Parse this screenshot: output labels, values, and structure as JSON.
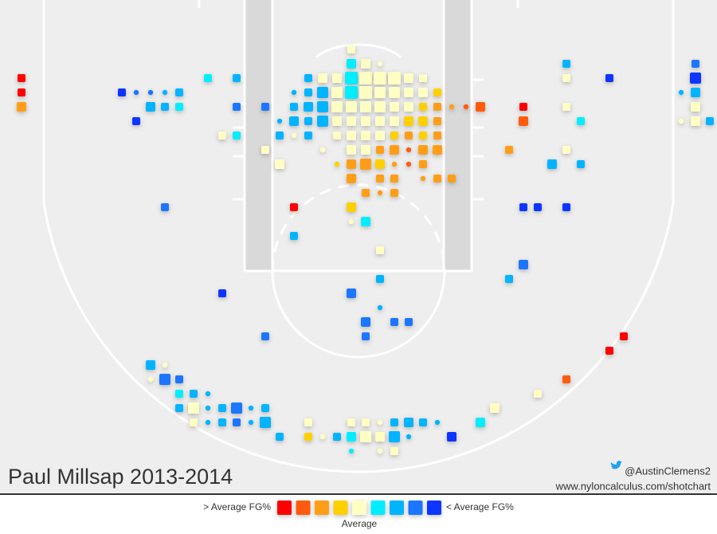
{
  "chart_data": {
    "type": "shotchart",
    "title": "Paul Millsap 2013-2014",
    "credit": "@AustinClemens2",
    "url": "www.nyloncalculus.com/shotchart",
    "legend": {
      "left": "> Average FG%",
      "right": "< Average FG%",
      "middle": "Average",
      "colors": [
        "#ff0000",
        "#ff5a0a",
        "#ff9e14",
        "#ffd000",
        "#ffffc4",
        "#00eeff",
        "#00b4ff",
        "#1a76ff",
        "#0a36ff"
      ]
    },
    "xlim": [
      -25,
      25
    ],
    "ylim": [
      0,
      34
    ],
    "points": [
      {
        "x": -0.5,
        "y": 3,
        "s": 2,
        "c": 4
      },
      {
        "x": -0.5,
        "y": 4,
        "s": 3,
        "c": 5
      },
      {
        "x": 0.5,
        "y": 4,
        "s": 3,
        "c": 4
      },
      {
        "x": 1.5,
        "y": 4,
        "s": 1,
        "c": 4
      },
      {
        "x": 14.5,
        "y": 4,
        "s": 2,
        "c": 6
      },
      {
        "x": 23.5,
        "y": 4,
        "s": 2,
        "c": 7
      },
      {
        "x": -23.5,
        "y": 5,
        "s": 2,
        "c": 0
      },
      {
        "x": -10.5,
        "y": 5,
        "s": 2,
        "c": 5
      },
      {
        "x": -8.5,
        "y": 5,
        "s": 2,
        "c": 6
      },
      {
        "x": -3.5,
        "y": 5,
        "s": 2,
        "c": 6
      },
      {
        "x": -2.5,
        "y": 5,
        "s": 3,
        "c": 4
      },
      {
        "x": -1.5,
        "y": 5,
        "s": 3,
        "c": 4
      },
      {
        "x": -0.5,
        "y": 5,
        "s": 5,
        "c": 5
      },
      {
        "x": 0.5,
        "y": 5,
        "s": 5,
        "c": 4
      },
      {
        "x": 1.5,
        "y": 5,
        "s": 5,
        "c": 4
      },
      {
        "x": 2.5,
        "y": 5,
        "s": 5,
        "c": 4
      },
      {
        "x": 3.5,
        "y": 5,
        "s": 3,
        "c": 4
      },
      {
        "x": 4.5,
        "y": 5,
        "s": 2,
        "c": 4
      },
      {
        "x": 14.5,
        "y": 5,
        "s": 2,
        "c": 4
      },
      {
        "x": 17.5,
        "y": 5,
        "s": 2,
        "c": 8
      },
      {
        "x": 23.5,
        "y": 5,
        "s": 4,
        "c": 8
      },
      {
        "x": -23.5,
        "y": 6,
        "s": 2,
        "c": 0
      },
      {
        "x": -16.5,
        "y": 6,
        "s": 2,
        "c": 8
      },
      {
        "x": -15.5,
        "y": 6,
        "s": 1,
        "c": 7
      },
      {
        "x": -14.5,
        "y": 6,
        "s": 1,
        "c": 7
      },
      {
        "x": -13.5,
        "y": 6,
        "s": 1,
        "c": 6
      },
      {
        "x": -12.5,
        "y": 6,
        "s": 2,
        "c": 6
      },
      {
        "x": -4.5,
        "y": 6,
        "s": 1,
        "c": 6
      },
      {
        "x": -3.5,
        "y": 6,
        "s": 2,
        "c": 6
      },
      {
        "x": -2.5,
        "y": 6,
        "s": 4,
        "c": 6
      },
      {
        "x": -1.5,
        "y": 6,
        "s": 4,
        "c": 4
      },
      {
        "x": -0.5,
        "y": 6,
        "s": 5,
        "c": 5
      },
      {
        "x": 0.5,
        "y": 6,
        "s": 5,
        "c": 4
      },
      {
        "x": 1.5,
        "y": 6,
        "s": 4,
        "c": 4
      },
      {
        "x": 2.5,
        "y": 6,
        "s": 4,
        "c": 4
      },
      {
        "x": 3.5,
        "y": 6,
        "s": 3,
        "c": 4
      },
      {
        "x": 4.5,
        "y": 6,
        "s": 3,
        "c": 4
      },
      {
        "x": 5.5,
        "y": 6,
        "s": 2,
        "c": 3
      },
      {
        "x": 22.5,
        "y": 6,
        "s": 1,
        "c": 6
      },
      {
        "x": 23.5,
        "y": 6,
        "s": 3,
        "c": 6
      },
      {
        "x": -23.5,
        "y": 7,
        "s": 3,
        "c": 2
      },
      {
        "x": -14.5,
        "y": 7,
        "s": 3,
        "c": 6
      },
      {
        "x": -13.5,
        "y": 7,
        "s": 2,
        "c": 6
      },
      {
        "x": -12.5,
        "y": 7,
        "s": 2,
        "c": 5
      },
      {
        "x": -8.5,
        "y": 7,
        "s": 2,
        "c": 7
      },
      {
        "x": -6.5,
        "y": 7,
        "s": 2,
        "c": 7
      },
      {
        "x": -4.5,
        "y": 7,
        "s": 2,
        "c": 6
      },
      {
        "x": -3.5,
        "y": 7,
        "s": 3,
        "c": 6
      },
      {
        "x": -2.5,
        "y": 7,
        "s": 4,
        "c": 6
      },
      {
        "x": -1.5,
        "y": 7,
        "s": 4,
        "c": 4
      },
      {
        "x": -0.5,
        "y": 7,
        "s": 4,
        "c": 4
      },
      {
        "x": 0.5,
        "y": 7,
        "s": 4,
        "c": 4
      },
      {
        "x": 1.5,
        "y": 7,
        "s": 4,
        "c": 4
      },
      {
        "x": 2.5,
        "y": 7,
        "s": 3,
        "c": 4
      },
      {
        "x": 3.5,
        "y": 7,
        "s": 3,
        "c": 4
      },
      {
        "x": 4.5,
        "y": 7,
        "s": 2,
        "c": 3
      },
      {
        "x": 5.5,
        "y": 7,
        "s": 2,
        "c": 2
      },
      {
        "x": 6.5,
        "y": 7,
        "s": 1,
        "c": 2
      },
      {
        "x": 7.5,
        "y": 7,
        "s": 1,
        "c": 1
      },
      {
        "x": 8.5,
        "y": 7,
        "s": 3,
        "c": 1
      },
      {
        "x": 11.5,
        "y": 7,
        "s": 2,
        "c": 0
      },
      {
        "x": 14.5,
        "y": 7,
        "s": 2,
        "c": 4
      },
      {
        "x": 23.5,
        "y": 7,
        "s": 3,
        "c": 4
      },
      {
        "x": -15.5,
        "y": 8,
        "s": 2,
        "c": 8
      },
      {
        "x": -5.5,
        "y": 8,
        "s": 1,
        "c": 6
      },
      {
        "x": -4.5,
        "y": 8,
        "s": 3,
        "c": 6
      },
      {
        "x": -3.5,
        "y": 8,
        "s": 2,
        "c": 6
      },
      {
        "x": -2.5,
        "y": 8,
        "s": 4,
        "c": 6
      },
      {
        "x": -1.5,
        "y": 8,
        "s": 3,
        "c": 4
      },
      {
        "x": -0.5,
        "y": 8,
        "s": 3,
        "c": 4
      },
      {
        "x": 0.5,
        "y": 8,
        "s": 3,
        "c": 4
      },
      {
        "x": 1.5,
        "y": 8,
        "s": 3,
        "c": 4
      },
      {
        "x": 2.5,
        "y": 8,
        "s": 3,
        "c": 4
      },
      {
        "x": 3.5,
        "y": 8,
        "s": 3,
        "c": 3
      },
      {
        "x": 4.5,
        "y": 8,
        "s": 3,
        "c": 3
      },
      {
        "x": 5.5,
        "y": 8,
        "s": 2,
        "c": 2
      },
      {
        "x": 11.5,
        "y": 8,
        "s": 3,
        "c": 1
      },
      {
        "x": 15.5,
        "y": 8,
        "s": 2,
        "c": 5
      },
      {
        "x": 22.5,
        "y": 8,
        "s": 1,
        "c": 4
      },
      {
        "x": 23.5,
        "y": 8,
        "s": 3,
        "c": 4
      },
      {
        "x": 24.5,
        "y": 8,
        "s": 2,
        "c": 6
      },
      {
        "x": -9.5,
        "y": 9,
        "s": 2,
        "c": 4
      },
      {
        "x": -8.5,
        "y": 9,
        "s": 2,
        "c": 5
      },
      {
        "x": -5.5,
        "y": 9,
        "s": 2,
        "c": 6
      },
      {
        "x": -4.5,
        "y": 9,
        "s": 1,
        "c": 4
      },
      {
        "x": -3.5,
        "y": 9,
        "s": 2,
        "c": 6
      },
      {
        "x": -1.5,
        "y": 9,
        "s": 2,
        "c": 4
      },
      {
        "x": -0.5,
        "y": 9,
        "s": 3,
        "c": 4
      },
      {
        "x": 0.5,
        "y": 9,
        "s": 3,
        "c": 4
      },
      {
        "x": 1.5,
        "y": 9,
        "s": 3,
        "c": 4
      },
      {
        "x": 2.5,
        "y": 9,
        "s": 2,
        "c": 3
      },
      {
        "x": 3.5,
        "y": 9,
        "s": 2,
        "c": 2
      },
      {
        "x": 4.5,
        "y": 9,
        "s": 2,
        "c": 3
      },
      {
        "x": 5.5,
        "y": 9,
        "s": 2,
        "c": 2
      },
      {
        "x": -6.5,
        "y": 10,
        "s": 2,
        "c": 4
      },
      {
        "x": -2.5,
        "y": 10,
        "s": 1,
        "c": 4
      },
      {
        "x": -0.5,
        "y": 10,
        "s": 3,
        "c": 4
      },
      {
        "x": 0.5,
        "y": 10,
        "s": 3,
        "c": 4
      },
      {
        "x": 1.5,
        "y": 10,
        "s": 2,
        "c": 2
      },
      {
        "x": 2.5,
        "y": 10,
        "s": 3,
        "c": 2
      },
      {
        "x": 3.5,
        "y": 10,
        "s": 1,
        "c": 1
      },
      {
        "x": 4.5,
        "y": 10,
        "s": 3,
        "c": 2
      },
      {
        "x": 5.5,
        "y": 10,
        "s": 3,
        "c": 2
      },
      {
        "x": 10.5,
        "y": 10,
        "s": 2,
        "c": 2
      },
      {
        "x": 14.5,
        "y": 10,
        "s": 2,
        "c": 4
      },
      {
        "x": -5.5,
        "y": 11,
        "s": 3,
        "c": 4
      },
      {
        "x": -1.5,
        "y": 11,
        "s": 1,
        "c": 3
      },
      {
        "x": -0.5,
        "y": 11,
        "s": 3,
        "c": 2
      },
      {
        "x": 0.5,
        "y": 11,
        "s": 4,
        "c": 2
      },
      {
        "x": 1.5,
        "y": 11,
        "s": 3,
        "c": 3
      },
      {
        "x": 2.5,
        "y": 11,
        "s": 1,
        "c": 2
      },
      {
        "x": 3.5,
        "y": 11,
        "s": 1,
        "c": 1
      },
      {
        "x": 4.5,
        "y": 11,
        "s": 2,
        "c": 2
      },
      {
        "x": 13.5,
        "y": 11,
        "s": 3,
        "c": 6
      },
      {
        "x": 15.5,
        "y": 11,
        "s": 2,
        "c": 6
      },
      {
        "x": -0.5,
        "y": 12,
        "s": 3,
        "c": 2
      },
      {
        "x": 1.5,
        "y": 12,
        "s": 2,
        "c": 2
      },
      {
        "x": 2.5,
        "y": 12,
        "s": 2,
        "c": 2
      },
      {
        "x": 4.5,
        "y": 12,
        "s": 1,
        "c": 2
      },
      {
        "x": 5.5,
        "y": 12,
        "s": 2,
        "c": 2
      },
      {
        "x": 6.5,
        "y": 12,
        "s": 2,
        "c": 2
      },
      {
        "x": 0.5,
        "y": 13,
        "s": 2,
        "c": 2
      },
      {
        "x": 1.5,
        "y": 13,
        "s": 1,
        "c": 2
      },
      {
        "x": 2.5,
        "y": 13,
        "s": 2,
        "c": 2
      },
      {
        "x": -13.5,
        "y": 14,
        "s": 2,
        "c": 7
      },
      {
        "x": -4.5,
        "y": 14,
        "s": 2,
        "c": 0
      },
      {
        "x": -0.5,
        "y": 14,
        "s": 3,
        "c": 3
      },
      {
        "x": 11.5,
        "y": 14,
        "s": 2,
        "c": 8
      },
      {
        "x": 12.5,
        "y": 14,
        "s": 2,
        "c": 8
      },
      {
        "x": 14.5,
        "y": 14,
        "s": 2,
        "c": 8
      },
      {
        "x": -0.5,
        "y": 15,
        "s": 1,
        "c": 4
      },
      {
        "x": 0.5,
        "y": 15,
        "s": 3,
        "c": 5
      },
      {
        "x": -4.5,
        "y": 16,
        "s": 2,
        "c": 6
      },
      {
        "x": 1.5,
        "y": 17,
        "s": 2,
        "c": 4
      },
      {
        "x": 11.5,
        "y": 18,
        "s": 3,
        "c": 7
      },
      {
        "x": 1.5,
        "y": 19,
        "s": 2,
        "c": 6
      },
      {
        "x": 10.5,
        "y": 19,
        "s": 2,
        "c": 6
      },
      {
        "x": -9.5,
        "y": 20,
        "s": 2,
        "c": 8
      },
      {
        "x": -0.5,
        "y": 20,
        "s": 3,
        "c": 7
      },
      {
        "x": 1.5,
        "y": 21,
        "s": 1,
        "c": 6
      },
      {
        "x": 0.5,
        "y": 22,
        "s": 3,
        "c": 7
      },
      {
        "x": 2.5,
        "y": 22,
        "s": 2,
        "c": 7
      },
      {
        "x": 3.5,
        "y": 22,
        "s": 2,
        "c": 7
      },
      {
        "x": -6.5,
        "y": 23,
        "s": 2,
        "c": 7
      },
      {
        "x": 0.5,
        "y": 23,
        "s": 2,
        "c": 7
      },
      {
        "x": 18.5,
        "y": 23,
        "s": 2,
        "c": 0
      },
      {
        "x": 17.5,
        "y": 24,
        "s": 2,
        "c": 0
      },
      {
        "x": -14.5,
        "y": 25,
        "s": 3,
        "c": 6
      },
      {
        "x": -13.5,
        "y": 25,
        "s": 1,
        "c": 4
      },
      {
        "x": -14.5,
        "y": 26,
        "s": 1,
        "c": 4
      },
      {
        "x": -13.5,
        "y": 26,
        "s": 4,
        "c": 7
      },
      {
        "x": -12.5,
        "y": 26,
        "s": 2,
        "c": 7
      },
      {
        "x": 14.5,
        "y": 26,
        "s": 2,
        "c": 1
      },
      {
        "x": -12.5,
        "y": 27,
        "s": 2,
        "c": 5
      },
      {
        "x": -11.5,
        "y": 27,
        "s": 2,
        "c": 6
      },
      {
        "x": -10.5,
        "y": 27,
        "s": 1,
        "c": 6
      },
      {
        "x": 12.5,
        "y": 27,
        "s": 2,
        "c": 4
      },
      {
        "x": -12.5,
        "y": 28,
        "s": 2,
        "c": 6
      },
      {
        "x": -11.5,
        "y": 28,
        "s": 4,
        "c": 4
      },
      {
        "x": -10.5,
        "y": 28,
        "s": 1,
        "c": 6
      },
      {
        "x": -9.5,
        "y": 28,
        "s": 2,
        "c": 6
      },
      {
        "x": -8.5,
        "y": 28,
        "s": 4,
        "c": 7
      },
      {
        "x": -7.5,
        "y": 28,
        "s": 1,
        "c": 6
      },
      {
        "x": -6.5,
        "y": 28,
        "s": 2,
        "c": 6
      },
      {
        "x": 9.5,
        "y": 28,
        "s": 3,
        "c": 4
      },
      {
        "x": -11.5,
        "y": 29,
        "s": 2,
        "c": 4
      },
      {
        "x": -10.5,
        "y": 29,
        "s": 1,
        "c": 6
      },
      {
        "x": -9.5,
        "y": 29,
        "s": 2,
        "c": 6
      },
      {
        "x": -8.5,
        "y": 29,
        "s": 2,
        "c": 7
      },
      {
        "x": -7.5,
        "y": 29,
        "s": 1,
        "c": 6
      },
      {
        "x": -6.5,
        "y": 29,
        "s": 4,
        "c": 6
      },
      {
        "x": -3.5,
        "y": 29,
        "s": 2,
        "c": 4
      },
      {
        "x": -0.5,
        "y": 29,
        "s": 2,
        "c": 4
      },
      {
        "x": 0.5,
        "y": 29,
        "s": 2,
        "c": 4
      },
      {
        "x": 1.5,
        "y": 29,
        "s": 1,
        "c": 4
      },
      {
        "x": 2.5,
        "y": 29,
        "s": 2,
        "c": 6
      },
      {
        "x": 3.5,
        "y": 29,
        "s": 3,
        "c": 6
      },
      {
        "x": 4.5,
        "y": 29,
        "s": 2,
        "c": 6
      },
      {
        "x": 5.5,
        "y": 29,
        "s": 1,
        "c": 6
      },
      {
        "x": 8.5,
        "y": 29,
        "s": 3,
        "c": 5
      },
      {
        "x": -5.5,
        "y": 30,
        "s": 2,
        "c": 6
      },
      {
        "x": -3.5,
        "y": 30,
        "s": 2,
        "c": 3
      },
      {
        "x": -2.5,
        "y": 30,
        "s": 1,
        "c": 4
      },
      {
        "x": -1.5,
        "y": 30,
        "s": 2,
        "c": 6
      },
      {
        "x": -0.5,
        "y": 30,
        "s": 3,
        "c": 5
      },
      {
        "x": 0.5,
        "y": 30,
        "s": 4,
        "c": 4
      },
      {
        "x": 1.5,
        "y": 30,
        "s": 3,
        "c": 4
      },
      {
        "x": 2.5,
        "y": 30,
        "s": 4,
        "c": 6
      },
      {
        "x": 3.5,
        "y": 30,
        "s": 1,
        "c": 6
      },
      {
        "x": 6.5,
        "y": 30,
        "s": 3,
        "c": 8
      },
      {
        "x": -0.5,
        "y": 31,
        "s": 1,
        "c": 5
      },
      {
        "x": 1.5,
        "y": 31,
        "s": 1,
        "c": 4
      },
      {
        "x": 2.5,
        "y": 31,
        "s": 2,
        "c": 4
      }
    ]
  }
}
